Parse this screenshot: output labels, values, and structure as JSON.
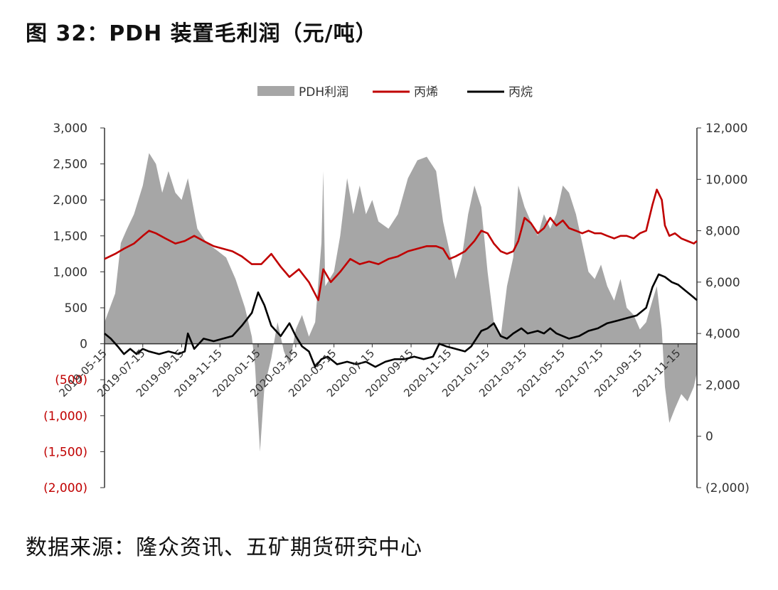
{
  "title": "图 32：PDH 装置毛利润（元/吨）",
  "source": "数据来源：隆众资讯、五矿期货研究中心",
  "colors": {
    "profit_area": "#a6a6a6",
    "propylene": "#c00000",
    "propane": "#000000",
    "negative_label": "#c00000",
    "axis": "#333333"
  },
  "chart_data": {
    "type": "area",
    "legend": [
      "PDH利润",
      "丙烯",
      "丙烷"
    ],
    "legend_position": "top",
    "grid": false,
    "x_ticks": [
      "2019-05-15",
      "2019-07-15",
      "2019-09-15",
      "2019-11-15",
      "2020-01-15",
      "2020-03-15",
      "2020-05-15",
      "2020-07-15",
      "2020-09-15",
      "2020-11-15",
      "2021-01-15",
      "2021-03-15",
      "2021-05-15",
      "2021-07-15",
      "2021-09-15",
      "2021-11-15"
    ],
    "y_left": {
      "ticks": [
        3000,
        2500,
        2000,
        1500,
        1000,
        500,
        0,
        -500,
        -1000,
        -1500,
        -2000
      ],
      "tick_labels": [
        "3,000",
        "2,500",
        "2,000",
        "1,500",
        "1,000",
        "500",
        "0",
        "(500)",
        "(1,000)",
        "(1,500)",
        "(2,000)"
      ],
      "range": [
        -2000,
        3000
      ]
    },
    "y_right": {
      "ticks": [
        12000,
        10000,
        8000,
        6000,
        4000,
        2000,
        0,
        -2000
      ],
      "tick_labels": [
        "12,000",
        "10,000",
        "8,000",
        "6,000",
        "4,000",
        "2,000",
        "0",
        "(2,000)"
      ],
      "range": [
        -2000,
        12000
      ]
    },
    "x_range": [
      "2019-05-15",
      "2021-12-15"
    ],
    "series": [
      {
        "name": "PDH利润",
        "axis": "left",
        "style": "area",
        "points": [
          [
            "2019-05-15",
            300
          ],
          [
            "2019-06-01",
            700
          ],
          [
            "2019-06-10",
            1400
          ],
          [
            "2019-06-20",
            1600
          ],
          [
            "2019-07-01",
            1800
          ],
          [
            "2019-07-15",
            2200
          ],
          [
            "2019-07-25",
            2650
          ],
          [
            "2019-08-05",
            2500
          ],
          [
            "2019-08-15",
            2100
          ],
          [
            "2019-08-25",
            2400
          ],
          [
            "2019-09-05",
            2100
          ],
          [
            "2019-09-15",
            2000
          ],
          [
            "2019-09-25",
            2300
          ],
          [
            "2019-10-10",
            1600
          ],
          [
            "2019-10-25",
            1400
          ],
          [
            "2019-11-10",
            1300
          ],
          [
            "2019-11-25",
            1200
          ],
          [
            "2019-12-10",
            900
          ],
          [
            "2019-12-25",
            500
          ],
          [
            "2020-01-05",
            100
          ],
          [
            "2020-01-10",
            -300
          ],
          [
            "2020-01-18",
            -1500
          ],
          [
            "2020-01-25",
            -600
          ],
          [
            "2020-02-05",
            -200
          ],
          [
            "2020-02-15",
            300
          ],
          [
            "2020-02-25",
            -100
          ],
          [
            "2020-03-05",
            -300
          ],
          [
            "2020-03-15",
            200
          ],
          [
            "2020-03-25",
            400
          ],
          [
            "2020-04-05",
            100
          ],
          [
            "2020-04-15",
            300
          ],
          [
            "2020-04-25",
            1400
          ],
          [
            "2020-04-28",
            2400
          ],
          [
            "2020-05-01",
            800
          ],
          [
            "2020-05-15",
            1000
          ],
          [
            "2020-05-25",
            1500
          ],
          [
            "2020-06-05",
            2300
          ],
          [
            "2020-06-15",
            1800
          ],
          [
            "2020-06-25",
            2200
          ],
          [
            "2020-07-05",
            1800
          ],
          [
            "2020-07-15",
            2000
          ],
          [
            "2020-07-25",
            1700
          ],
          [
            "2020-08-10",
            1600
          ],
          [
            "2020-08-25",
            1800
          ],
          [
            "2020-09-10",
            2300
          ],
          [
            "2020-09-25",
            2550
          ],
          [
            "2020-10-10",
            2600
          ],
          [
            "2020-10-25",
            2400
          ],
          [
            "2020-11-05",
            1700
          ],
          [
            "2020-11-15",
            1300
          ],
          [
            "2020-11-25",
            900
          ],
          [
            "2020-12-05",
            1200
          ],
          [
            "2020-12-15",
            1800
          ],
          [
            "2020-12-25",
            2200
          ],
          [
            "2021-01-05",
            1900
          ],
          [
            "2021-01-15",
            1000
          ],
          [
            "2021-01-25",
            300
          ],
          [
            "2021-02-05",
            100
          ],
          [
            "2021-02-15",
            800
          ],
          [
            "2021-02-25",
            1200
          ],
          [
            "2021-03-05",
            2200
          ],
          [
            "2021-03-15",
            1900
          ],
          [
            "2021-03-25",
            1700
          ],
          [
            "2021-04-05",
            1500
          ],
          [
            "2021-04-15",
            1800
          ],
          [
            "2021-04-25",
            1600
          ],
          [
            "2021-05-05",
            1800
          ],
          [
            "2021-05-15",
            2200
          ],
          [
            "2021-05-25",
            2100
          ],
          [
            "2021-06-05",
            1800
          ],
          [
            "2021-06-15",
            1400
          ],
          [
            "2021-06-25",
            1000
          ],
          [
            "2021-07-05",
            900
          ],
          [
            "2021-07-15",
            1100
          ],
          [
            "2021-07-25",
            800
          ],
          [
            "2021-08-05",
            600
          ],
          [
            "2021-08-15",
            900
          ],
          [
            "2021-08-25",
            500
          ],
          [
            "2021-09-05",
            400
          ],
          [
            "2021-09-15",
            200
          ],
          [
            "2021-09-25",
            300
          ],
          [
            "2021-10-05",
            600
          ],
          [
            "2021-10-12",
            800
          ],
          [
            "2021-10-20",
            200
          ],
          [
            "2021-10-25",
            -600
          ],
          [
            "2021-11-01",
            -1100
          ],
          [
            "2021-11-10",
            -900
          ],
          [
            "2021-11-20",
            -700
          ],
          [
            "2021-11-30",
            -800
          ],
          [
            "2021-12-10",
            -600
          ],
          [
            "2021-12-15",
            -400
          ]
        ]
      },
      {
        "name": "丙烯",
        "axis": "right",
        "style": "line",
        "points": [
          [
            "2019-05-15",
            6900
          ],
          [
            "2019-06-01",
            7100
          ],
          [
            "2019-06-15",
            7300
          ],
          [
            "2019-07-01",
            7500
          ],
          [
            "2019-07-15",
            7800
          ],
          [
            "2019-07-25",
            8000
          ],
          [
            "2019-08-05",
            7900
          ],
          [
            "2019-08-20",
            7700
          ],
          [
            "2019-09-05",
            7500
          ],
          [
            "2019-09-20",
            7600
          ],
          [
            "2019-10-05",
            7800
          ],
          [
            "2019-10-20",
            7600
          ],
          [
            "2019-11-05",
            7400
          ],
          [
            "2019-11-20",
            7300
          ],
          [
            "2019-12-05",
            7200
          ],
          [
            "2019-12-20",
            7000
          ],
          [
            "2020-01-05",
            6700
          ],
          [
            "2020-01-20",
            6700
          ],
          [
            "2020-02-05",
            7100
          ],
          [
            "2020-02-20",
            6600
          ],
          [
            "2020-03-05",
            6200
          ],
          [
            "2020-03-20",
            6500
          ],
          [
            "2020-04-05",
            6000
          ],
          [
            "2020-04-20",
            5300
          ],
          [
            "2020-04-28",
            6500
          ],
          [
            "2020-05-10",
            6000
          ],
          [
            "2020-05-25",
            6400
          ],
          [
            "2020-06-10",
            6900
          ],
          [
            "2020-06-25",
            6700
          ],
          [
            "2020-07-10",
            6800
          ],
          [
            "2020-07-25",
            6700
          ],
          [
            "2020-08-10",
            6900
          ],
          [
            "2020-08-25",
            7000
          ],
          [
            "2020-09-10",
            7200
          ],
          [
            "2020-09-25",
            7300
          ],
          [
            "2020-10-10",
            7400
          ],
          [
            "2020-10-25",
            7400
          ],
          [
            "2020-11-05",
            7300
          ],
          [
            "2020-11-15",
            6900
          ],
          [
            "2020-11-25",
            7000
          ],
          [
            "2020-12-10",
            7200
          ],
          [
            "2020-12-25",
            7600
          ],
          [
            "2021-01-05",
            8000
          ],
          [
            "2021-01-15",
            7900
          ],
          [
            "2021-01-25",
            7500
          ],
          [
            "2021-02-05",
            7200
          ],
          [
            "2021-02-15",
            7100
          ],
          [
            "2021-02-25",
            7200
          ],
          [
            "2021-03-05",
            7600
          ],
          [
            "2021-03-15",
            8500
          ],
          [
            "2021-03-25",
            8300
          ],
          [
            "2021-04-05",
            7900
          ],
          [
            "2021-04-15",
            8100
          ],
          [
            "2021-04-25",
            8500
          ],
          [
            "2021-05-05",
            8200
          ],
          [
            "2021-05-15",
            8400
          ],
          [
            "2021-05-25",
            8100
          ],
          [
            "2021-06-05",
            8000
          ],
          [
            "2021-06-15",
            7900
          ],
          [
            "2021-06-25",
            8000
          ],
          [
            "2021-07-05",
            7900
          ],
          [
            "2021-07-15",
            7900
          ],
          [
            "2021-07-25",
            7800
          ],
          [
            "2021-08-05",
            7700
          ],
          [
            "2021-08-15",
            7800
          ],
          [
            "2021-08-25",
            7800
          ],
          [
            "2021-09-05",
            7700
          ],
          [
            "2021-09-15",
            7900
          ],
          [
            "2021-09-25",
            8000
          ],
          [
            "2021-10-05",
            9000
          ],
          [
            "2021-10-12",
            9600
          ],
          [
            "2021-10-20",
            9200
          ],
          [
            "2021-10-25",
            8200
          ],
          [
            "2021-11-01",
            7800
          ],
          [
            "2021-11-10",
            7900
          ],
          [
            "2021-11-20",
            7700
          ],
          [
            "2021-11-30",
            7600
          ],
          [
            "2021-12-10",
            7500
          ],
          [
            "2021-12-15",
            7600
          ]
        ]
      },
      {
        "name": "丙烷",
        "axis": "right",
        "style": "line",
        "points": [
          [
            "2019-05-15",
            4000
          ],
          [
            "2019-05-25",
            3800
          ],
          [
            "2019-06-05",
            3500
          ],
          [
            "2019-06-15",
            3200
          ],
          [
            "2019-06-25",
            3400
          ],
          [
            "2019-07-05",
            3200
          ],
          [
            "2019-07-15",
            3400
          ],
          [
            "2019-07-25",
            3300
          ],
          [
            "2019-08-10",
            3200
          ],
          [
            "2019-08-25",
            3300
          ],
          [
            "2019-09-10",
            3200
          ],
          [
            "2019-09-20",
            3300
          ],
          [
            "2019-09-25",
            4000
          ],
          [
            "2019-10-05",
            3400
          ],
          [
            "2019-10-20",
            3800
          ],
          [
            "2019-11-05",
            3700
          ],
          [
            "2019-11-20",
            3800
          ],
          [
            "2019-12-05",
            3900
          ],
          [
            "2019-12-20",
            4300
          ],
          [
            "2020-01-05",
            4800
          ],
          [
            "2020-01-15",
            5600
          ],
          [
            "2020-01-25",
            5100
          ],
          [
            "2020-02-05",
            4300
          ],
          [
            "2020-02-20",
            3900
          ],
          [
            "2020-03-05",
            4400
          ],
          [
            "2020-03-15",
            3900
          ],
          [
            "2020-03-25",
            3500
          ],
          [
            "2020-04-05",
            3300
          ],
          [
            "2020-04-15",
            2700
          ],
          [
            "2020-04-25",
            3000
          ],
          [
            "2020-05-05",
            3100
          ],
          [
            "2020-05-20",
            2800
          ],
          [
            "2020-06-05",
            2900
          ],
          [
            "2020-06-20",
            2800
          ],
          [
            "2020-07-05",
            2900
          ],
          [
            "2020-07-20",
            2700
          ],
          [
            "2020-08-05",
            2900
          ],
          [
            "2020-08-20",
            3000
          ],
          [
            "2020-09-05",
            3000
          ],
          [
            "2020-09-20",
            3100
          ],
          [
            "2020-10-05",
            3000
          ],
          [
            "2020-10-20",
            3100
          ],
          [
            "2020-10-30",
            3600
          ],
          [
            "2020-11-10",
            3500
          ],
          [
            "2020-11-25",
            3400
          ],
          [
            "2020-12-10",
            3300
          ],
          [
            "2020-12-20",
            3500
          ],
          [
            "2021-01-05",
            4100
          ],
          [
            "2021-01-15",
            4200
          ],
          [
            "2021-01-25",
            4400
          ],
          [
            "2021-02-05",
            3900
          ],
          [
            "2021-02-15",
            3800
          ],
          [
            "2021-02-25",
            4000
          ],
          [
            "2021-03-10",
            4200
          ],
          [
            "2021-03-20",
            4000
          ],
          [
            "2021-04-05",
            4100
          ],
          [
            "2021-04-15",
            4000
          ],
          [
            "2021-04-25",
            4200
          ],
          [
            "2021-05-05",
            4000
          ],
          [
            "2021-05-15",
            3900
          ],
          [
            "2021-05-25",
            3800
          ],
          [
            "2021-06-10",
            3900
          ],
          [
            "2021-06-25",
            4100
          ],
          [
            "2021-07-10",
            4200
          ],
          [
            "2021-07-25",
            4400
          ],
          [
            "2021-08-10",
            4500
          ],
          [
            "2021-08-25",
            4600
          ],
          [
            "2021-09-10",
            4700
          ],
          [
            "2021-09-25",
            5000
          ],
          [
            "2021-10-05",
            5800
          ],
          [
            "2021-10-15",
            6300
          ],
          [
            "2021-10-25",
            6200
          ],
          [
            "2021-11-05",
            6000
          ],
          [
            "2021-11-15",
            5900
          ],
          [
            "2021-11-25",
            5700
          ],
          [
            "2021-12-05",
            5500
          ],
          [
            "2021-12-15",
            5300
          ]
        ]
      }
    ]
  }
}
